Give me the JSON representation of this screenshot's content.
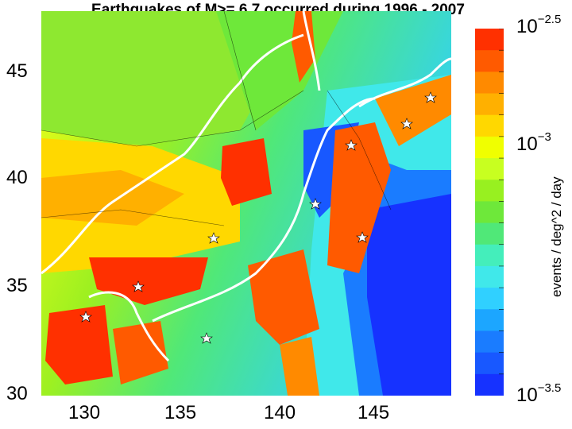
{
  "title": "Earthquakes of M>= 6.7 occurred during 1996 - 2007",
  "y_axis": {
    "ticks": [
      "45",
      "40",
      "35",
      "30"
    ]
  },
  "x_axis": {
    "ticks": [
      "130",
      "135",
      "140",
      "145"
    ]
  },
  "colorbar": {
    "label": "events / deg^2 / day",
    "ticks": [
      {
        "base": "10",
        "exp": "−2.5"
      },
      {
        "base": "10",
        "exp": "−3"
      },
      {
        "base": "10",
        "exp": "−3.5"
      }
    ],
    "colors": [
      "#ff3000",
      "#ff5a00",
      "#ff8a00",
      "#ffb000",
      "#ffd800",
      "#f0ff00",
      "#c8ff20",
      "#98f020",
      "#6ee83a",
      "#50e878",
      "#44eebb",
      "#40e8ea",
      "#30d0ff",
      "#1ca6ff",
      "#1a7cff",
      "#1858ff",
      "#1632ff"
    ]
  },
  "legend_marker": "star"
}
